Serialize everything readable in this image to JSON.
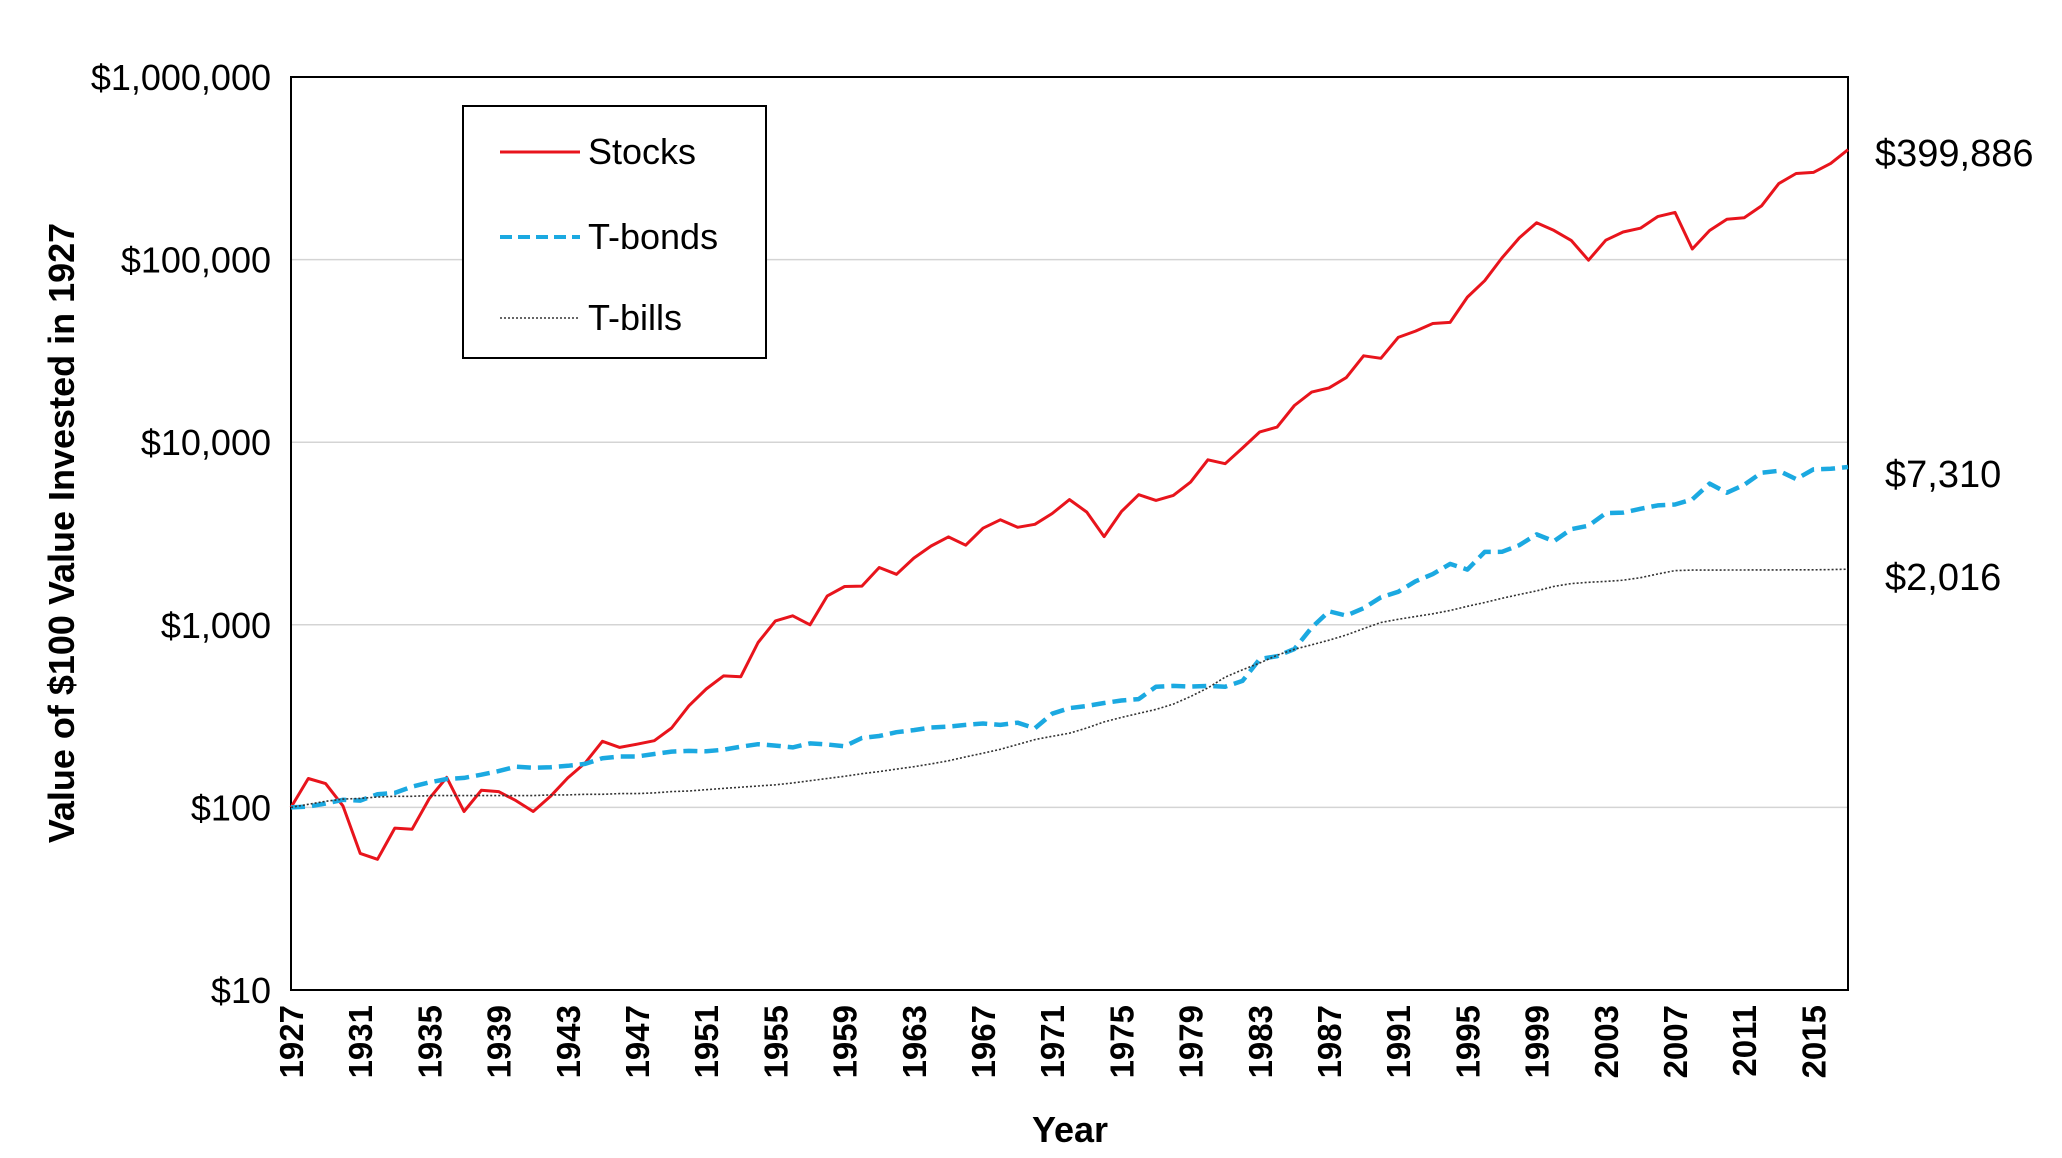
{
  "chart_data": {
    "type": "line",
    "title": "",
    "xlabel": "Year",
    "ylabel": "Value of $100 Value Invested in 1927",
    "y_scale": "log",
    "ylim": [
      10,
      1000000
    ],
    "xlim": [
      1927,
      2017
    ],
    "y_tick_labels": [
      "$10",
      "$100",
      "$1,000",
      "$10,000",
      "$100,000",
      "$1,000,000"
    ],
    "y_tick_values": [
      10,
      100,
      1000,
      10000,
      100000,
      1000000
    ],
    "x_tick_labels": [
      "1927",
      "1931",
      "1935",
      "1939",
      "1943",
      "1947",
      "1951",
      "1955",
      "1959",
      "1963",
      "1967",
      "1971",
      "1975",
      "1979",
      "1983",
      "1987",
      "1991",
      "1995",
      "1999",
      "2003",
      "2007",
      "2011",
      "2015"
    ],
    "grid": "horizontal",
    "legend_position": "top-left",
    "x": [
      1927,
      1928,
      1929,
      1930,
      1931,
      1932,
      1933,
      1934,
      1935,
      1936,
      1937,
      1938,
      1939,
      1940,
      1941,
      1942,
      1943,
      1944,
      1945,
      1946,
      1947,
      1948,
      1949,
      1950,
      1951,
      1952,
      1953,
      1954,
      1955,
      1956,
      1957,
      1958,
      1959,
      1960,
      1961,
      1962,
      1963,
      1964,
      1965,
      1966,
      1967,
      1968,
      1969,
      1970,
      1971,
      1972,
      1973,
      1974,
      1975,
      1976,
      1977,
      1978,
      1979,
      1980,
      1981,
      1982,
      1983,
      1984,
      1985,
      1986,
      1987,
      1988,
      1989,
      1990,
      1991,
      1992,
      1993,
      1994,
      1995,
      1996,
      1997,
      1998,
      1999,
      2000,
      2001,
      2002,
      2003,
      2004,
      2005,
      2006,
      2007,
      2008,
      2009,
      2010,
      2011,
      2012,
      2013,
      2014,
      2015,
      2016,
      2017
    ],
    "series": [
      {
        "name": "Stocks",
        "color": "#e8141c",
        "style": "solid",
        "end_label": "$399,886",
        "values": [
          100,
          144,
          135,
          102,
          56,
          52,
          77,
          76,
          112,
          146,
          95,
          124,
          122,
          109,
          95,
          115,
          145,
          175,
          230,
          213,
          222,
          232,
          272,
          360,
          445,
          525,
          520,
          800,
          1050,
          1120,
          1000,
          1440,
          1620,
          1630,
          2060,
          1890,
          2320,
          2700,
          3030,
          2730,
          3380,
          3760,
          3420,
          3550,
          4070,
          4850,
          4140,
          3040,
          4170,
          5160,
          4800,
          5110,
          6050,
          8010,
          7630,
          9300,
          11380,
          12100,
          15890,
          18820,
          19820,
          22580,
          29730,
          28790,
          37500,
          40600,
          44700,
          45300,
          62300,
          76600,
          102200,
          131400,
          159100,
          144600,
          127400,
          99300,
          127700,
          141600,
          148500,
          171900,
          181300,
          114300,
          144400,
          166200,
          169700,
          196900,
          260700,
          296300,
          300400,
          336400,
          399886
        ]
      },
      {
        "name": "T-bonds",
        "color": "#1ba9e1",
        "style": "dashed",
        "end_label": "$7,310",
        "values": [
          100,
          101,
          105,
          110,
          109,
          118,
          120,
          130,
          137,
          143,
          145,
          151,
          158,
          167,
          165,
          166,
          169,
          173,
          186,
          190,
          190,
          196,
          202,
          204,
          203,
          207,
          215,
          222,
          218,
          213,
          224,
          221,
          216,
          240,
          246,
          258,
          265,
          274,
          277,
          283,
          288,
          283,
          291,
          271,
          326,
          350,
          359,
          373,
          385,
          392,
          458,
          463,
          459,
          463,
          458,
          493,
          650,
          673,
          737,
          965,
          1185,
          1123,
          1233,
          1415,
          1517,
          1730,
          1895,
          2154,
          2006,
          2509,
          2510,
          2727,
          3125,
          2871,
          3338,
          3490,
          4084,
          4114,
          4317,
          4509,
          4556,
          4860,
          5932,
          5290,
          5843,
          6810,
          6968,
          6283,
          7100,
          7150,
          7310
        ]
      },
      {
        "name": "T-bills",
        "color": "#333333",
        "style": "dotted",
        "end_label": "$2,016",
        "values": [
          100,
          104,
          108,
          111,
          112,
          114,
          115,
          115,
          116,
          116,
          116,
          116,
          116,
          116,
          116,
          117,
          117,
          118,
          118,
          119,
          119,
          120,
          122,
          123,
          125,
          127,
          129,
          131,
          133,
          136,
          140,
          144,
          148,
          153,
          157,
          162,
          167,
          173,
          180,
          189,
          198,
          208,
          221,
          235,
          245,
          255,
          272,
          294,
          311,
          327,
          344,
          368,
          405,
          451,
          517,
          567,
          618,
          682,
          734,
          777,
          823,
          879,
          953,
          1029,
          1072,
          1110,
          1149,
          1197,
          1262,
          1325,
          1396,
          1466,
          1534,
          1622,
          1682,
          1710,
          1728,
          1754,
          1812,
          1897,
          1981,
          1993,
          1994,
          1996,
          1997,
          1998,
          1999,
          2000,
          2000,
          2006,
          2016
        ]
      }
    ]
  }
}
